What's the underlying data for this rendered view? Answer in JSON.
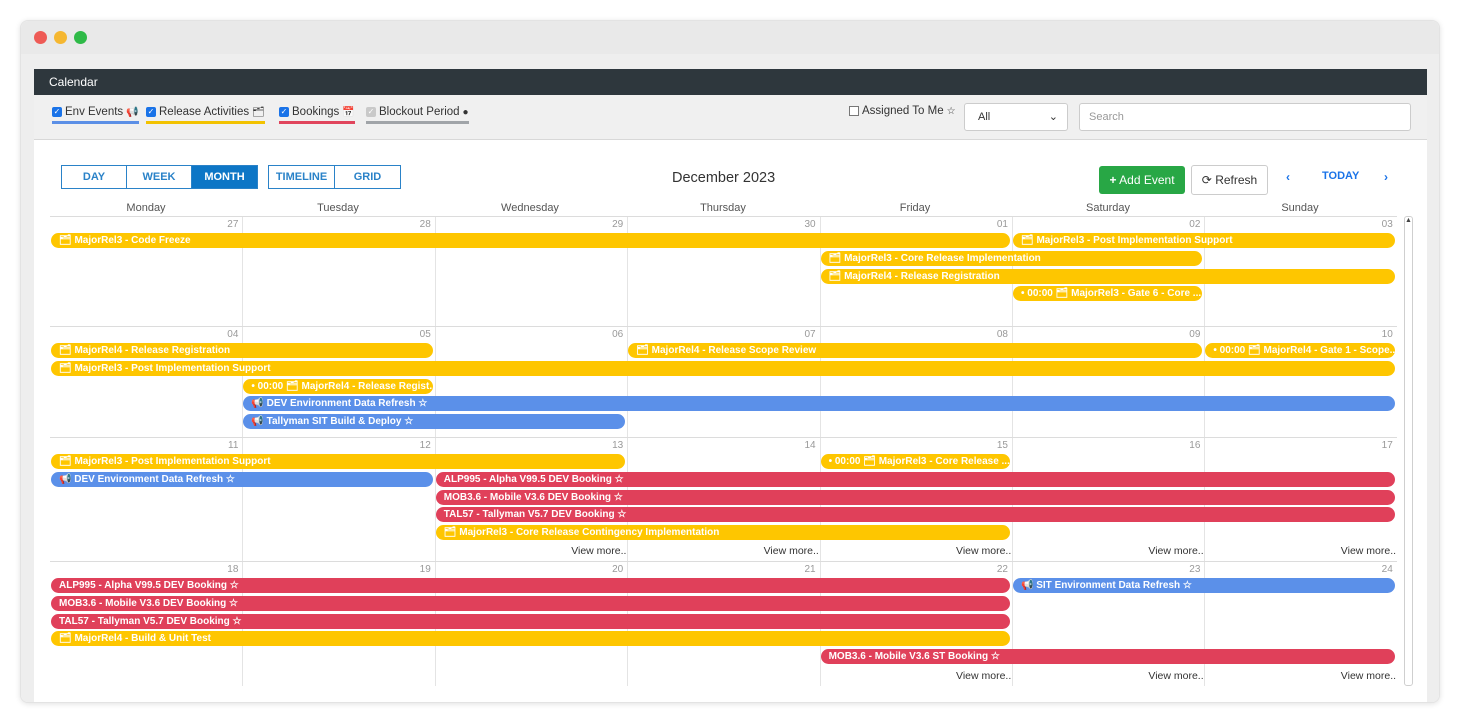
{
  "window": {
    "title": "Calendar"
  },
  "filters": [
    {
      "label": "Env Events",
      "icon": "megaphone-icon",
      "checked": true,
      "color": "#5b8fe6"
    },
    {
      "label": "Release Activities",
      "icon": "cubes-icon",
      "checked": true,
      "color": "#f2c200"
    },
    {
      "label": "Bookings",
      "icon": "calendar-check-icon",
      "checked": true,
      "color": "#e0455c"
    },
    {
      "label": "Blockout Period",
      "icon": "clock-icon",
      "checked": true,
      "color": "#a0a4a8"
    }
  ],
  "assigned_to_me": {
    "label": "Assigned To Me",
    "checked": false,
    "icon": "star-icon"
  },
  "select": {
    "value": "All"
  },
  "search": {
    "placeholder": "Search"
  },
  "views": [
    {
      "label": "DAY",
      "active": false
    },
    {
      "label": "WEEK",
      "active": false
    },
    {
      "label": "MONTH",
      "active": true
    },
    {
      "label": "TIMELINE",
      "active": false
    },
    {
      "label": "GRID",
      "active": false
    }
  ],
  "month_title": "December 2023",
  "actions": {
    "add_event": "Add Event",
    "refresh": "Refresh",
    "today": "TODAY"
  },
  "day_names": [
    "Monday",
    "Tuesday",
    "Wednesday",
    "Thursday",
    "Friday",
    "Saturday",
    "Sunday"
  ],
  "colors": {
    "release": "#fec600",
    "booking": "#e0405a",
    "env": "#5b90e9",
    "add_button": "#28a745",
    "primary": "#0d76c6"
  },
  "weeks": [
    {
      "days": [
        "27",
        "28",
        "29",
        "30",
        "01",
        "02",
        "03"
      ],
      "events": [
        {
          "row": 0,
          "start": 0,
          "span": 5,
          "type": "y",
          "text": "🗂 MajorRel3 - Code Freeze"
        },
        {
          "row": 0,
          "start": 5,
          "span": 2,
          "type": "y",
          "text": "🗂 MajorRel3 - Post Implementation Support"
        },
        {
          "row": 1,
          "start": 4,
          "span": 2,
          "type": "y",
          "text": "🗂 MajorRel3 - Core Release Implementation"
        },
        {
          "row": 2,
          "start": 4,
          "span": 3,
          "type": "y",
          "text": "🗂 MajorRel4 - Release Registration"
        },
        {
          "row": 3,
          "start": 5,
          "span": 1,
          "type": "y",
          "text": "• 00:00 🗂 MajorRel3 - Gate 6 - Core ..."
        }
      ],
      "more": []
    },
    {
      "days": [
        "04",
        "05",
        "06",
        "07",
        "08",
        "09",
        "10"
      ],
      "events": [
        {
          "row": 0,
          "start": 0,
          "span": 2,
          "type": "y",
          "text": "🗂 MajorRel4 - Release Registration"
        },
        {
          "row": 0,
          "start": 3,
          "span": 3,
          "type": "y",
          "text": "🗂 MajorRel4 - Release Scope Review"
        },
        {
          "row": 0,
          "start": 6,
          "span": 1,
          "type": "y",
          "text": "• 00:00 🗂 MajorRel4 - Gate 1 - Scope..."
        },
        {
          "row": 1,
          "start": 0,
          "span": 7,
          "type": "y",
          "text": "🗂 MajorRel3 - Post Implementation Support"
        },
        {
          "row": 2,
          "start": 1,
          "span": 1,
          "type": "y",
          "text": "• 00:00 🗂 MajorRel4 - Release Regist..."
        },
        {
          "row": 3,
          "start": 1,
          "span": 6,
          "type": "b",
          "text": "📢 DEV Environment Data Refresh ☆"
        },
        {
          "row": 4,
          "start": 1,
          "span": 2,
          "type": "b",
          "text": "📢 Tallyman SIT Build & Deploy ☆"
        }
      ],
      "more": []
    },
    {
      "days": [
        "11",
        "12",
        "13",
        "14",
        "15",
        "16",
        "17"
      ],
      "events": [
        {
          "row": 0,
          "start": 0,
          "span": 3,
          "type": "y",
          "text": "🗂 MajorRel3 - Post Implementation Support"
        },
        {
          "row": 0,
          "start": 4,
          "span": 1,
          "type": "y",
          "text": "• 00:00 🗂 MajorRel3 - Core Release ..."
        },
        {
          "row": 1,
          "start": 0,
          "span": 2,
          "type": "b",
          "text": "📢 DEV Environment Data Refresh ☆"
        },
        {
          "row": 1,
          "start": 2,
          "span": 5,
          "type": "r",
          "text": "ALP995 - Alpha V99.5 DEV Booking ☆"
        },
        {
          "row": 2,
          "start": 2,
          "span": 5,
          "type": "r",
          "text": "MOB3.6 - Mobile V3.6 DEV Booking ☆"
        },
        {
          "row": 3,
          "start": 2,
          "span": 5,
          "type": "r",
          "text": "TAL57 - Tallyman V5.7 DEV Booking ☆"
        },
        {
          "row": 4,
          "start": 2,
          "span": 3,
          "type": "y",
          "text": "🗂 MajorRel3 - Core Release Contingency Implementation"
        }
      ],
      "more": [
        {
          "day": 2,
          "text": "View more.."
        },
        {
          "day": 3,
          "text": "View more.."
        },
        {
          "day": 4,
          "text": "View more.."
        },
        {
          "day": 5,
          "text": "View more.."
        },
        {
          "day": 6,
          "text": "View more.."
        }
      ]
    },
    {
      "days": [
        "18",
        "19",
        "20",
        "21",
        "22",
        "23",
        "24"
      ],
      "events": [
        {
          "row": 0,
          "start": 0,
          "span": 5,
          "type": "r",
          "text": "ALP995 - Alpha V99.5 DEV Booking ☆"
        },
        {
          "row": 0,
          "start": 5,
          "span": 2,
          "type": "b",
          "text": "📢 SIT Environment Data Refresh ☆"
        },
        {
          "row": 1,
          "start": 0,
          "span": 5,
          "type": "r",
          "text": "MOB3.6 - Mobile V3.6 DEV Booking ☆"
        },
        {
          "row": 2,
          "start": 0,
          "span": 5,
          "type": "r",
          "text": "TAL57 - Tallyman V5.7 DEV Booking ☆"
        },
        {
          "row": 3,
          "start": 0,
          "span": 5,
          "type": "y",
          "text": "🗂 MajorRel4 - Build & Unit Test"
        },
        {
          "row": 4,
          "start": 4,
          "span": 3,
          "type": "r",
          "text": "MOB3.6 - Mobile V3.6 ST Booking ☆"
        }
      ],
      "more": [
        {
          "day": 4,
          "text": "View more.."
        },
        {
          "day": 5,
          "text": "View more.."
        },
        {
          "day": 6,
          "text": "View more.."
        }
      ]
    }
  ]
}
